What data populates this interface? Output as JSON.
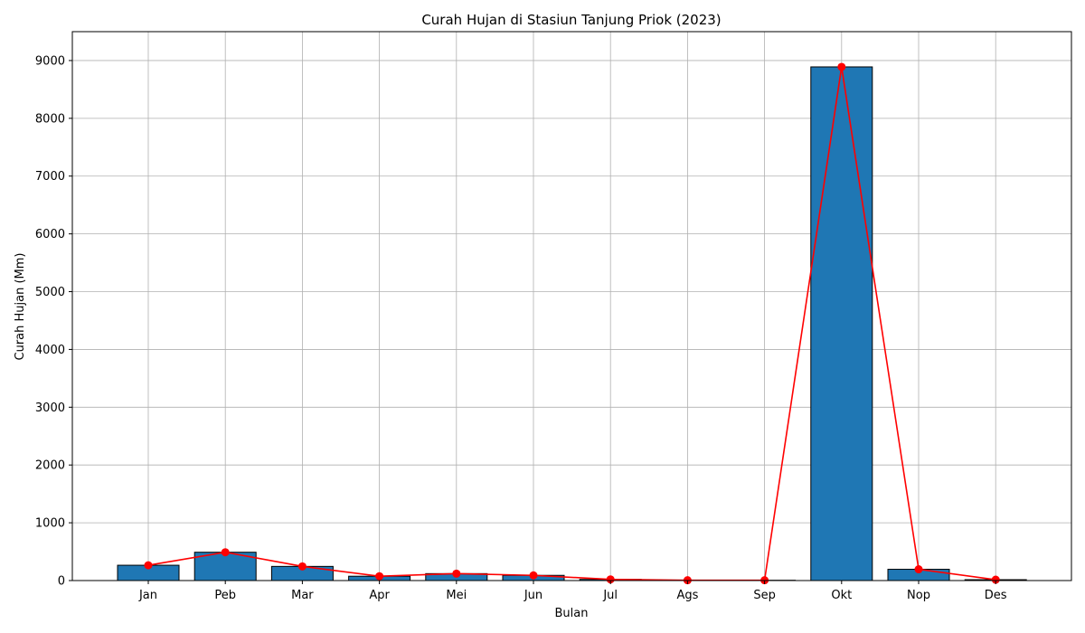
{
  "chart_data": {
    "type": "bar",
    "title": "Curah Hujan di Stasiun Tanjung Priok (2023)",
    "xlabel": "Bulan",
    "ylabel": "Curah Hujan (Mm)",
    "categories": [
      "Jan",
      "Peb",
      "Mar",
      "Apr",
      "Mei",
      "Jun",
      "Jul",
      "Ags",
      "Sep",
      "Okt",
      "Nop",
      "Des"
    ],
    "values": [
      265,
      490,
      245,
      75,
      120,
      90,
      20,
      5,
      5,
      8890,
      195,
      15
    ],
    "ylim": [
      0,
      9500
    ],
    "yticks": [
      0,
      1000,
      2000,
      3000,
      4000,
      5000,
      6000,
      7000,
      8000,
      9000
    ],
    "grid": true,
    "overlay": {
      "type": "line",
      "marker": "circle"
    },
    "colors": {
      "bar": "#1f77b4",
      "bar_edge": "#000000",
      "line": "#ff0000",
      "grid": "#b0b0b0"
    }
  }
}
